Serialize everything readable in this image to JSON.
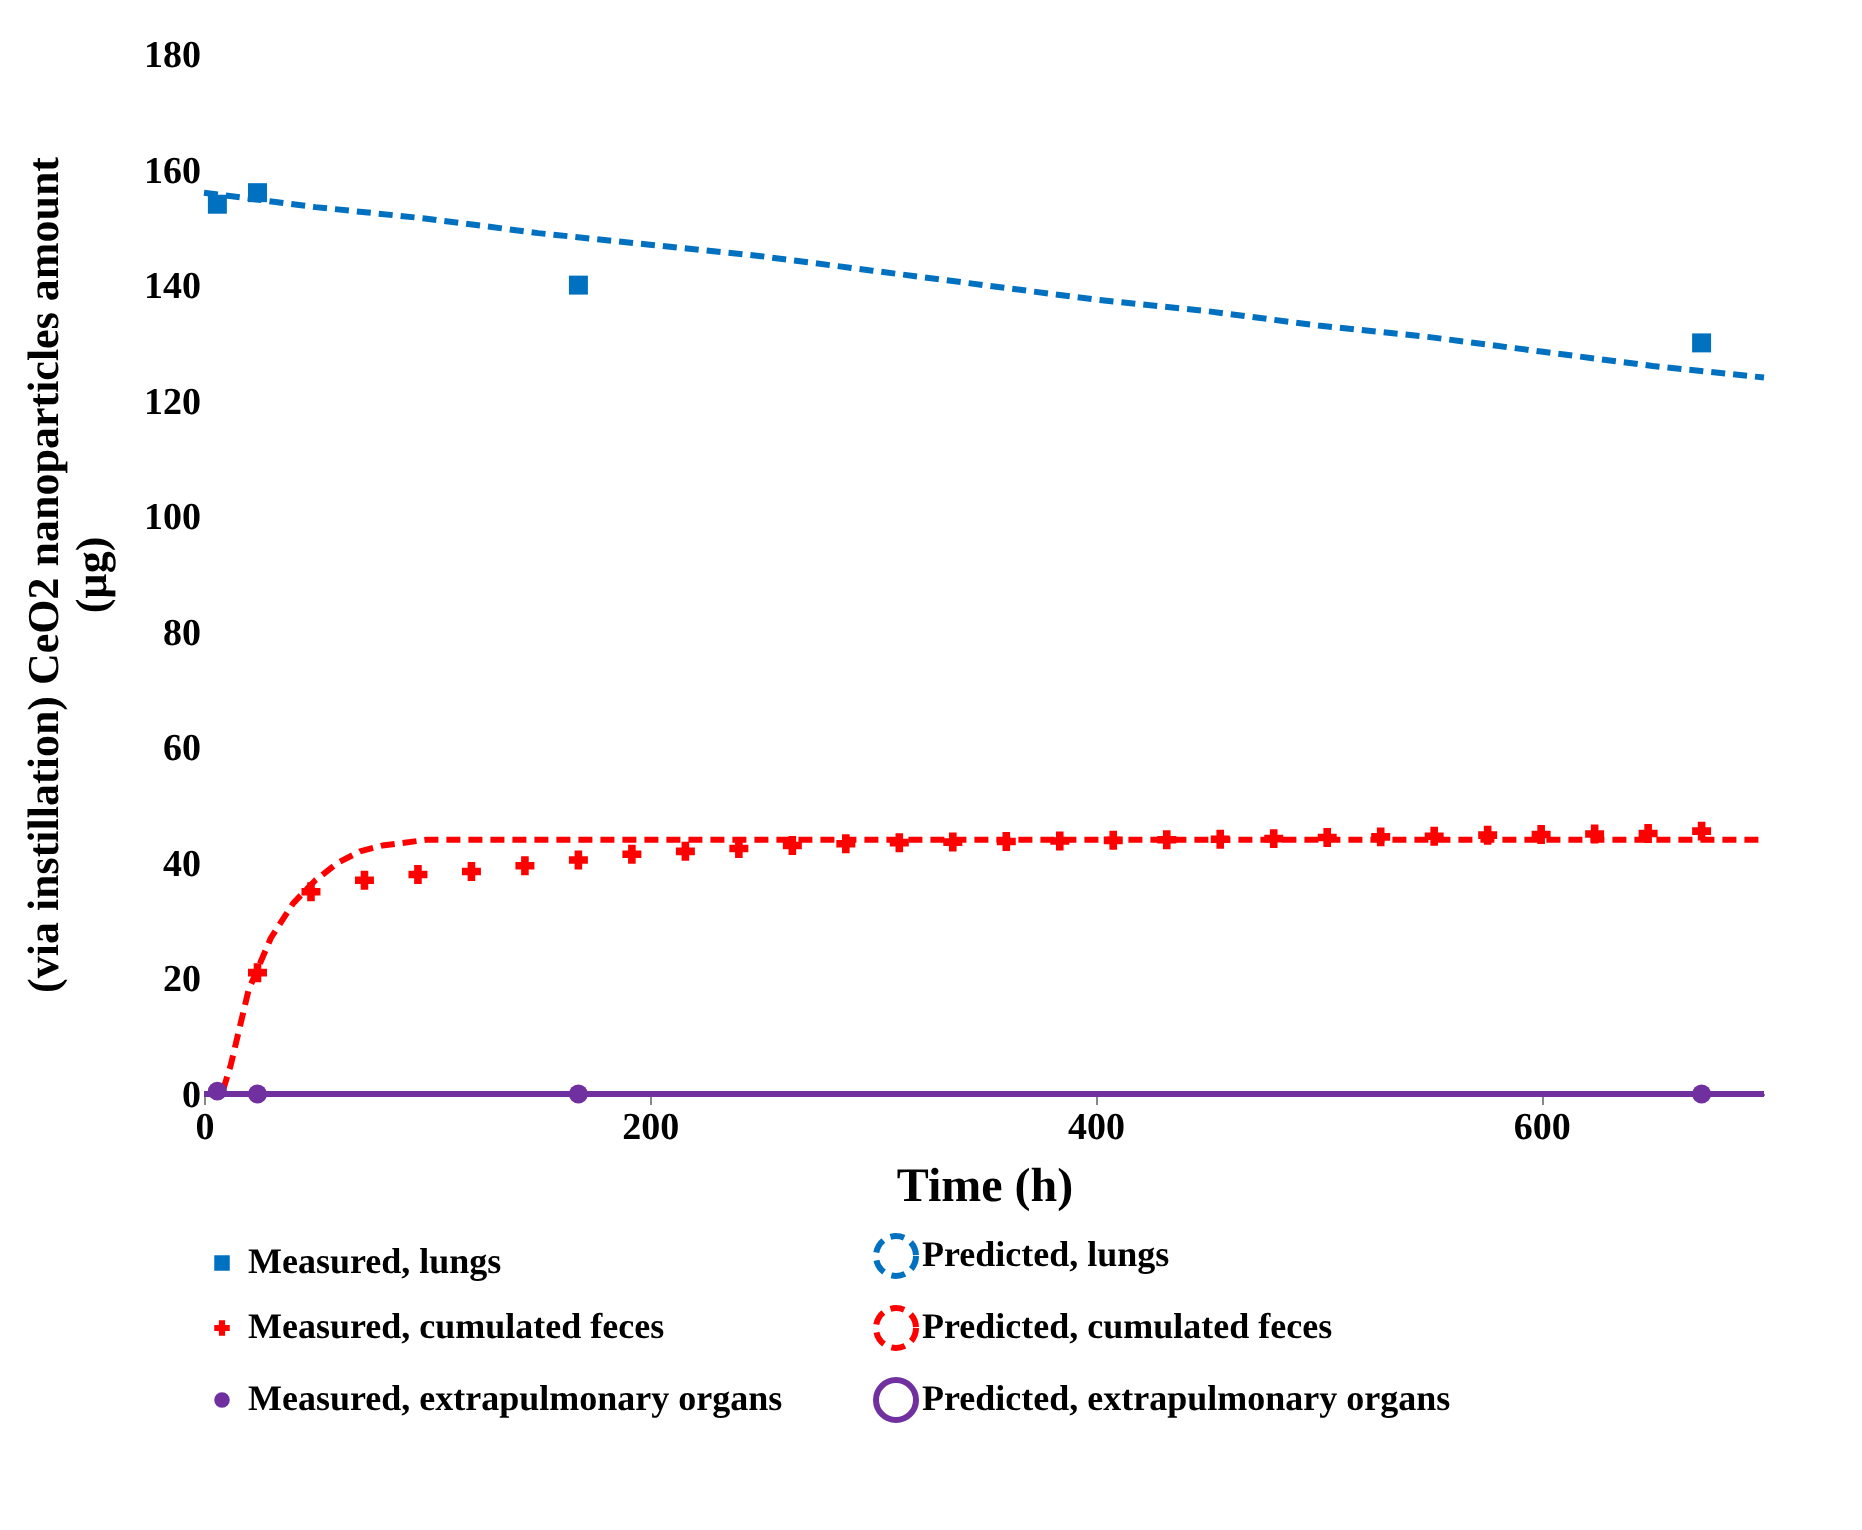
{
  "chart_data": {
    "type": "line",
    "xlabel": "Time (h)",
    "ylabel": "(via instillation) CeO2 nanoparticles amount\n(µg)",
    "xlim": [
      0,
      700
    ],
    "xticks": [
      0,
      200,
      400,
      600
    ],
    "ylim": [
      0,
      180
    ],
    "yticks": [
      0,
      20,
      40,
      60,
      80,
      100,
      120,
      140,
      160,
      180
    ],
    "grid": false,
    "legend": "bottom",
    "series": [
      {
        "name": "Measured, lungs",
        "type": "scatter",
        "marker": "square",
        "color": "#0070c0",
        "x": [
          6,
          24,
          168,
          672
        ],
        "values": [
          154,
          156,
          140,
          130
        ]
      },
      {
        "name": "Predicted, lungs",
        "type": "line",
        "line_style": "dashed",
        "color": "#0070c0",
        "x": [
          0,
          50,
          100,
          150,
          200,
          250,
          300,
          350,
          400,
          450,
          500,
          550,
          600,
          650,
          700
        ],
        "values": [
          156,
          153.5,
          151.5,
          149,
          147,
          145,
          142.5,
          140,
          137.5,
          135.5,
          133,
          131,
          128.5,
          126,
          124
        ]
      },
      {
        "name": "Measured, cumulated feces",
        "type": "scatter",
        "marker": "cross",
        "color": "#ff0000",
        "x": [
          24,
          48,
          72,
          96,
          120,
          144,
          168,
          192,
          216,
          240,
          264,
          288,
          312,
          336,
          360,
          384,
          408,
          432,
          456,
          480,
          504,
          528,
          552,
          576,
          600,
          624,
          648,
          672
        ],
        "values": [
          21,
          35,
          37,
          38,
          38.5,
          39.5,
          40.5,
          41.5,
          42,
          42.5,
          43,
          43.3,
          43.5,
          43.6,
          43.7,
          43.8,
          43.9,
          44,
          44.1,
          44.2,
          44.4,
          44.5,
          44.6,
          44.8,
          44.9,
          45,
          45.1,
          45.5
        ]
      },
      {
        "name": "Predicted, cumulated feces",
        "type": "line",
        "line_style": "dashed",
        "color": "#ff0000",
        "x": [
          0,
          8,
          12,
          20,
          30,
          40,
          50,
          60,
          70,
          80,
          100,
          150,
          200,
          300,
          400,
          500,
          600,
          700
        ],
        "values": [
          0,
          0,
          5,
          18,
          27,
          33,
          37,
          40,
          42,
          43,
          44,
          44,
          44,
          44,
          44,
          44,
          44,
          44
        ]
      },
      {
        "name": "Measured, extrapulmonary organs",
        "type": "scatter",
        "marker": "circle",
        "color": "#7030a0",
        "x": [
          6,
          24,
          168,
          672
        ],
        "values": [
          0.5,
          0,
          0,
          0
        ]
      },
      {
        "name": "Predicted, extrapulmonary organs",
        "type": "line",
        "line_style": "solid",
        "color": "#7030a0",
        "x": [
          0,
          700
        ],
        "values": [
          0,
          0
        ]
      }
    ]
  }
}
